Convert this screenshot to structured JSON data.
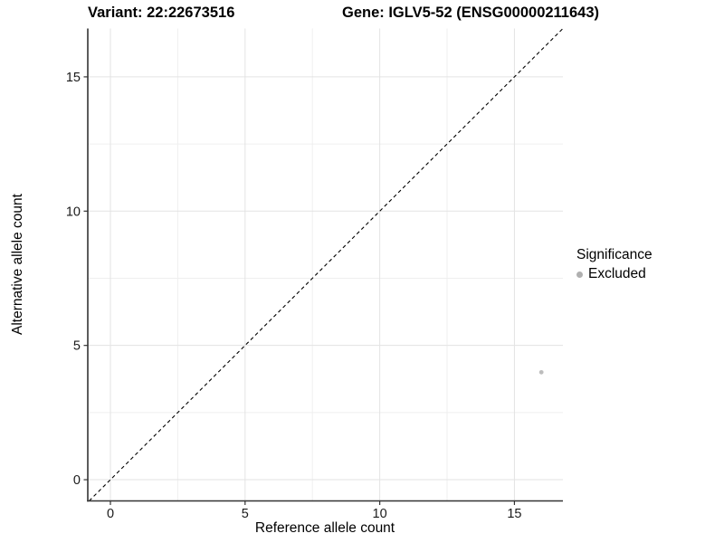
{
  "header": {
    "variant_title": "Variant: 22:22673516",
    "gene_title": "Gene: IGLV5-52 (ENSG00000211643)"
  },
  "chart_data": {
    "type": "scatter",
    "title_left": "Variant: 22:22673516",
    "title_right": "Gene: IGLV5-52 (ENSG00000211643)",
    "xlabel": "Reference allele count",
    "ylabel": "Alternative allele count",
    "xlim": [
      -0.84,
      16.8
    ],
    "ylim": [
      -0.79,
      16.8
    ],
    "x_ticks": [
      0,
      5,
      10,
      15
    ],
    "y_ticks": [
      0,
      5,
      10,
      15
    ],
    "x_tick_labels": [
      "0",
      "5",
      "10",
      "15"
    ],
    "y_tick_labels": [
      "0",
      "5",
      "10",
      "15"
    ],
    "x_minor_ticks": [
      2.5,
      7.5,
      12.5
    ],
    "y_minor_ticks": [
      2.5,
      7.5,
      12.5
    ],
    "grid": true,
    "reference_line": {
      "type": "identity",
      "slope": 1,
      "intercept": 0,
      "style": "dashed",
      "color": "#000000"
    },
    "series": [
      {
        "name": "Excluded",
        "color": "#bdbdbd",
        "points": [
          {
            "x": 16,
            "y": 4
          }
        ]
      }
    ],
    "legend": {
      "title": "Significance",
      "position": "right",
      "items": [
        {
          "label": "Excluded",
          "color": "#b0b0b0"
        }
      ]
    },
    "colors": {
      "axis_line": "#333333",
      "tick_text": "#1a1a1a",
      "grid_major": "#e3e3e3",
      "grid_minor": "#efefef",
      "background": "#ffffff"
    }
  }
}
